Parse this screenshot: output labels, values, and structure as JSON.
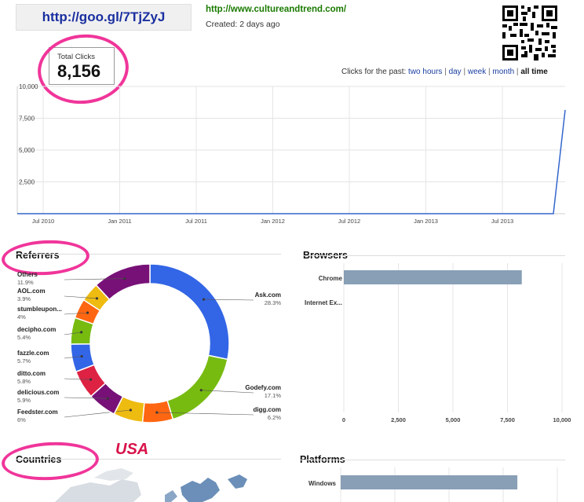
{
  "link": {
    "short_url": "http://goo.gl/7TjZyJ",
    "long_url": "http://www.cultureandtrend.com/",
    "created": "Created: 2 days ago"
  },
  "qr_icon": "qr-code-icon",
  "total_clicks": {
    "label": "Total Clicks",
    "value": "8,156"
  },
  "period_selector": {
    "prefix": "Clicks for the past:",
    "options": [
      "two hours",
      "day",
      "week",
      "month",
      "all time"
    ],
    "selected": "all time"
  },
  "colors": {
    "annotation": "#f0359a",
    "line": "#3366cc",
    "bar": "#889fb5",
    "usa": "#d8124a"
  },
  "sections": {
    "referrers": "Referrers",
    "browsers": "Browsers",
    "countries": "Countries",
    "platforms": "Platforms"
  },
  "annotation_text": "USA",
  "chart_data": [
    {
      "type": "line",
      "title": "",
      "x": [
        "2010-06",
        "2010-07",
        "2010-10",
        "2011-01",
        "2011-04",
        "2011-07",
        "2011-10",
        "2012-01",
        "2012-04",
        "2012-07",
        "2012-10",
        "2013-01",
        "2013-04",
        "2013-07",
        "2013-10",
        "2013-11",
        "2013-12"
      ],
      "series": [
        {
          "values": [
            0,
            0,
            0,
            0,
            0,
            0,
            0,
            0,
            0,
            0,
            0,
            0,
            0,
            0,
            0,
            0,
            8156
          ]
        }
      ],
      "x_tick_labels": [
        "Jul 2010",
        "Jan 2011",
        "Jul 2011",
        "Jan 2012",
        "Jul 2012",
        "Jan 2013",
        "Jul 2013"
      ],
      "y_tick_labels": [
        "10,000",
        "7,500",
        "5,000",
        "2,500"
      ],
      "ylim": [
        0,
        10000
      ],
      "grid": true
    },
    {
      "type": "pie",
      "title": "Referrers",
      "donut": true,
      "slices": [
        {
          "label": "Ask.com",
          "value": 28.3,
          "pct": "28.3%",
          "color": "#3366e6"
        },
        {
          "label": "Godefy.com",
          "value": 17.1,
          "pct": "17.1%",
          "color": "#77bb11"
        },
        {
          "label": "digg.com",
          "value": 6.2,
          "pct": "6.2%",
          "color": "#ff6611"
        },
        {
          "label": "Feedster.com",
          "value": 6.0,
          "pct": "6%",
          "color": "#eebb11"
        },
        {
          "label": "delicious.com",
          "value": 5.9,
          "pct": "5.9%",
          "color": "#771177"
        },
        {
          "label": "ditto.com",
          "value": 5.8,
          "pct": "5.8%",
          "color": "#dd2244"
        },
        {
          "label": "fazzle.com",
          "value": 5.7,
          "pct": "5.7%",
          "color": "#3366e6"
        },
        {
          "label": "decipho.com",
          "value": 5.4,
          "pct": "5.4%",
          "color": "#77bb11"
        },
        {
          "label": "stumbleupon...",
          "value": 4.0,
          "pct": "4%",
          "color": "#ff6611"
        },
        {
          "label": "AOL.com",
          "value": 3.9,
          "pct": "3.9%",
          "color": "#eebb11"
        },
        {
          "label": "Others",
          "value": 11.9,
          "pct": "11.9%",
          "color": "#771177"
        }
      ]
    },
    {
      "type": "bar",
      "title": "Browsers",
      "orientation": "horizontal",
      "categories": [
        "Chrome",
        "Internet Ex..."
      ],
      "values": [
        8156,
        0
      ],
      "xlim": [
        0,
        10000
      ],
      "x_tick_labels": [
        "0",
        "2,500",
        "5,000",
        "7,500",
        "10,000"
      ],
      "grid": true
    },
    {
      "type": "bar",
      "title": "Platforms",
      "orientation": "horizontal",
      "categories": [
        "Windows"
      ],
      "values": [
        8156
      ],
      "xlim": [
        0,
        10000
      ],
      "grid": true
    }
  ]
}
